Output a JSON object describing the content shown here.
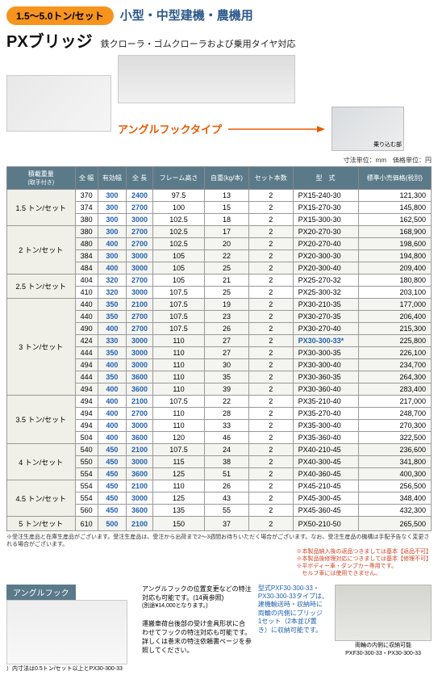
{
  "header": {
    "badge": "1.5〜5.0トン/セット",
    "subtitle": "小型・中型建機・農機用",
    "title": "PXブリッジ",
    "desc": "鉄クローラ・ゴムクローラおよび乗用タイヤ対応",
    "hook_type": "アングルフックタイプ",
    "ride_label": "乗り込む部",
    "units": "寸法単位：mm　価格単位：円"
  },
  "table": {
    "columns": [
      "積載重量",
      "全 幅",
      "有効幅",
      "全 長",
      "フレーム高さ",
      "自重(kg/本)",
      "セット本数",
      "型　式",
      "標準小売価格(税別)"
    ],
    "note_handle": "(取手付き)",
    "groups": [
      {
        "load": "1.5 トン/セット",
        "alt": 0,
        "rows": [
          [
            "370",
            "300",
            "2400",
            "97.5",
            "13",
            "2",
            "PX15-240-30",
            "121,300"
          ],
          [
            "374",
            "300",
            "2700",
            "100",
            "15",
            "2",
            "PX15-270-30",
            "145,800"
          ],
          [
            "380",
            "300",
            "3000",
            "102.5",
            "18",
            "2",
            "PX15-300-30",
            "162,500"
          ]
        ]
      },
      {
        "load": "2 トン/セット",
        "alt": 1,
        "rows": [
          [
            "380",
            "300",
            "2700",
            "102.5",
            "17",
            "2",
            "PX20-270-30",
            "168,900"
          ],
          [
            "480",
            "400",
            "2700",
            "102.5",
            "20",
            "2",
            "PX20-270-40",
            "198,600"
          ],
          [
            "384",
            "300",
            "3000",
            "105",
            "22",
            "2",
            "PX20-300-30",
            "194,800"
          ],
          [
            "484",
            "400",
            "3000",
            "105",
            "25",
            "2",
            "PX20-300-40",
            "209,400"
          ]
        ]
      },
      {
        "load": "2.5 トン/セット",
        "alt": 0,
        "rows": [
          [
            "404",
            "320",
            "2700",
            "105",
            "21",
            "2",
            "PX25-270-32",
            "180,800"
          ],
          [
            "410",
            "320",
            "3000",
            "107.5",
            "25",
            "2",
            "PX25-300-32",
            "203,100"
          ]
        ]
      },
      {
        "load": "3 トン/セット",
        "alt": 1,
        "rows": [
          [
            "440",
            "350",
            "2100",
            "107.5",
            "19",
            "2",
            "PX30-210-35",
            "177,000"
          ],
          [
            "440",
            "350",
            "2700",
            "107.5",
            "23",
            "2",
            "PX30-270-35",
            "206,400"
          ],
          [
            "490",
            "400",
            "2700",
            "107.5",
            "26",
            "2",
            "PX30-270-40",
            "215,300"
          ],
          [
            "424",
            "330",
            "3000",
            "110",
            "27",
            "2",
            "PX30-300-33*",
            "225,800",
            true
          ],
          [
            "444",
            "350",
            "3000",
            "110",
            "27",
            "2",
            "PX30-300-35",
            "226,100"
          ],
          [
            "494",
            "400",
            "3000",
            "110",
            "30",
            "2",
            "PX30-300-40",
            "234,700"
          ],
          [
            "444",
            "350",
            "3600",
            "110",
            "35",
            "2",
            "PX30-360-35",
            "264,300"
          ],
          [
            "494",
            "400",
            "3600",
            "110",
            "39",
            "2",
            "PX30-360-40",
            "283,400"
          ]
        ]
      },
      {
        "load": "3.5 トン/セット",
        "alt": 0,
        "rows": [
          [
            "494",
            "400",
            "2100",
            "107.5",
            "22",
            "2",
            "PX35-210-40",
            "217,000"
          ],
          [
            "494",
            "400",
            "2700",
            "110",
            "28",
            "2",
            "PX35-270-40",
            "248,700"
          ],
          [
            "494",
            "400",
            "3000",
            "110",
            "33",
            "2",
            "PX35-300-40",
            "270,300"
          ],
          [
            "504",
            "400",
            "3600",
            "120",
            "46",
            "2",
            "PX35-360-40",
            "322,500"
          ]
        ]
      },
      {
        "load": "4 トン/セット",
        "alt": 1,
        "rows": [
          [
            "540",
            "450",
            "2100",
            "107.5",
            "24",
            "2",
            "PX40-210-45",
            "236,600"
          ],
          [
            "550",
            "450",
            "3000",
            "115",
            "38",
            "2",
            "PX40-300-45",
            "341,800"
          ],
          [
            "554",
            "450",
            "3600",
            "125",
            "51",
            "2",
            "PX40-360-45",
            "400,300"
          ]
        ]
      },
      {
        "load": "4.5 トン/セット",
        "alt": 0,
        "rows": [
          [
            "554",
            "450",
            "2100",
            "110",
            "26",
            "2",
            "PX45-210-45",
            "256,500"
          ],
          [
            "554",
            "450",
            "3000",
            "125",
            "43",
            "2",
            "PX45-300-45",
            "348,400"
          ],
          [
            "560",
            "450",
            "3600",
            "135",
            "55",
            "2",
            "PX45-360-45",
            "432,300"
          ]
        ]
      },
      {
        "load": "5 トン/セット",
        "alt": 1,
        "rows": [
          [
            "610",
            "500",
            "2100",
            "150",
            "37",
            "2",
            "PX50-210-50",
            "265,500"
          ]
        ]
      }
    ]
  },
  "footnotes": {
    "line1": "※受注生産品と在庫生産品がございます。受注生産品は、受注から出荷まで2〜3週間お待ちいただく場合がございます。なお、受注生産品の機構は手配予告なく変更される場合がございます。",
    "red1": "※本製品納入後の返品つきましては基本【返品不可】",
    "red2": "※本製品後修理対応につきましては基本【修理不可】",
    "red3": "※平ボディー車・ダンプカー専用です。",
    "red4": "　セルフ車には使用できません。"
  },
  "angle": {
    "title": "アングルフック",
    "text1": "アングルフックの位置変更などの特注対応も可能です。(14頁参照)",
    "text1b": "(別途¥14,000となります。)",
    "text2": "運搬車荷台後部の受け金具形状に合わせてフックの特注対応も可能です。",
    "text3": "詳しくは巻末の特注依頼書ページを参照してください。",
    "text4": "）内寸法は0.5トン/セット以上とPX30-300-33",
    "blue_note": "型式PXF30-300-33・\nPX30-300-33タイプは、\n建機輸送時・収納時に\n両輪の内側にブリッジ\n1セット（2本並び置\nき）に収納可能です。",
    "bottom_caption": "両輪の内側に収納可能\nPXF30-300-33・PX30-300-33"
  }
}
